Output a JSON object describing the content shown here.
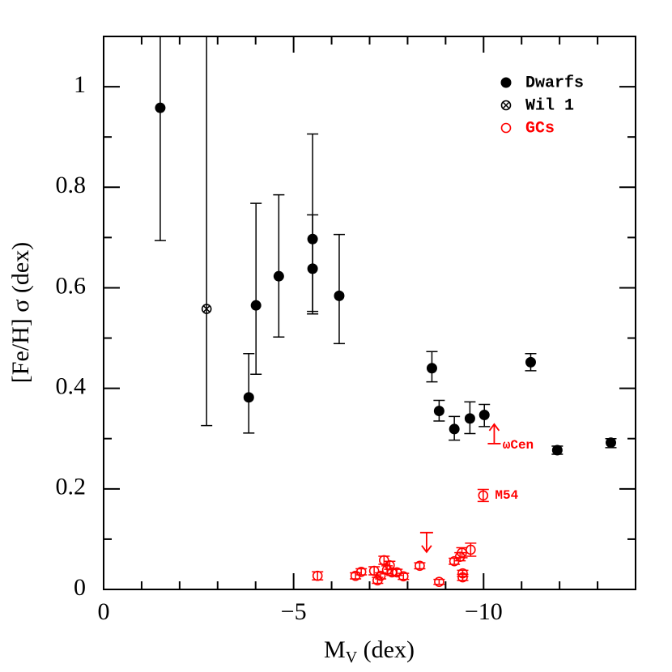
{
  "chart_data": {
    "type": "scatter",
    "xlabel": {
      "main": "M",
      "sub": "V",
      "rest": " (dex)"
    },
    "ylabel": "[Fe/H] σ (dex)",
    "xlim": [
      0,
      -14
    ],
    "ylim": [
      0,
      1.1
    ],
    "xticks": [
      0,
      {
        "value": -5,
        "label": "−5"
      },
      {
        "value": -10,
        "label": "−10"
      }
    ],
    "xminor_ticks": [
      -1,
      -2,
      -3,
      -4,
      -6,
      -7,
      -8,
      -9,
      -11,
      -12,
      -13
    ],
    "yticks": [
      0,
      0.2,
      0.4,
      0.6,
      0.8,
      1
    ],
    "yminor_ticks": [
      0.1,
      0.3,
      0.5,
      0.7,
      0.9
    ],
    "legend": "upper right",
    "series": [
      {
        "name": "Dwarfs",
        "marker": "filled",
        "color": "#000000",
        "x": [
          -1.49,
          -3.82,
          -4.01,
          -4.61,
          -5.5,
          -5.5,
          -6.2,
          -8.64,
          -8.83,
          -9.23,
          -9.64,
          -10.02,
          -11.24,
          -11.94,
          -13.35
        ],
        "values": [
          0.958,
          0.382,
          0.565,
          0.623,
          0.697,
          0.638,
          0.584,
          0.44,
          0.355,
          0.319,
          0.34,
          0.347,
          0.452,
          0.277,
          0.292
        ],
        "ylow": [
          0.694,
          0.311,
          0.428,
          0.502,
          0.553,
          0.548,
          0.489,
          0.413,
          0.335,
          0.297,
          0.31,
          0.324,
          0.435,
          0.269,
          0.282
        ],
        "yhigh": [
          1.2,
          0.469,
          0.768,
          0.785,
          0.906,
          0.745,
          0.706,
          0.473,
          0.376,
          0.344,
          0.373,
          0.368,
          0.469,
          0.285,
          0.3
        ]
      },
      {
        "name": "Wil 1",
        "marker": "crossed",
        "color": "#000000",
        "x": [
          -2.71
        ],
        "values": [
          0.558
        ],
        "ylow": [
          0.326
        ],
        "yhigh": [
          1.2
        ]
      },
      {
        "name": "GCs",
        "marker": "open",
        "color": "#ff0000",
        "x": [
          -5.63,
          -6.63,
          -6.78,
          -7.12,
          -7.21,
          -7.29,
          -7.38,
          -7.46,
          -7.53,
          -7.59,
          -7.72,
          -7.89,
          -8.32,
          -8.83,
          -9.23,
          -9.38,
          -9.43,
          -9.45,
          -9.45,
          -9.66,
          -9.99
        ],
        "values": [
          0.027,
          0.027,
          0.035,
          0.037,
          0.018,
          0.027,
          0.058,
          0.039,
          0.048,
          0.034,
          0.034,
          0.026,
          0.047,
          0.015,
          0.056,
          0.065,
          0.073,
          0.032,
          0.024,
          0.079,
          0.187
        ],
        "ylow": [
          0.019,
          0.021,
          0.029,
          0.029,
          0.012,
          0.021,
          0.05,
          0.031,
          0.04,
          0.028,
          0.028,
          0.02,
          0.041,
          0.01,
          0.05,
          0.057,
          0.063,
          0.026,
          0.018,
          0.066,
          0.175
        ],
        "yhigh": [
          0.035,
          0.033,
          0.041,
          0.045,
          0.024,
          0.033,
          0.066,
          0.047,
          0.056,
          0.04,
          0.04,
          0.032,
          0.053,
          0.02,
          0.062,
          0.073,
          0.083,
          0.038,
          0.03,
          0.092,
          0.199
        ]
      }
    ],
    "limits": [
      {
        "x": -8.5,
        "y": 0.113,
        "direction": "down",
        "color": "#ff0000"
      },
      {
        "x": -10.28,
        "y": 0.29,
        "direction": "up",
        "color": "#ff0000"
      }
    ],
    "annotations": [
      {
        "text": "ωCen",
        "x": -10.5,
        "y": 0.287,
        "color": "#ff0000"
      },
      {
        "text": "M54",
        "x": -10.3,
        "y": 0.187,
        "color": "#ff0000"
      }
    ]
  }
}
